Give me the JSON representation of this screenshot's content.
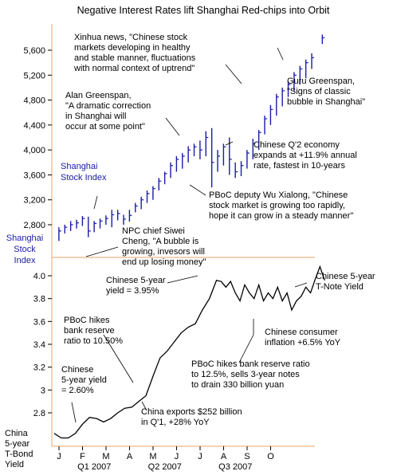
{
  "chart_data": [
    {
      "type": "candlestick",
      "title": "Negative Interest Rates lift Shanghai Red-chips into Orbit",
      "ylabel": "Shanghai Stock Index",
      "ylim": [
        2480,
        5900
      ],
      "yticks": [
        2800,
        3200,
        3600,
        4000,
        4400,
        4800,
        5200,
        5600
      ],
      "ytick_labels": [
        "2,800",
        "3,200",
        "3,600",
        "4,000",
        "4,400",
        "4,800",
        "5,200",
        "5,600"
      ],
      "series_label": "Shanghai Stock Index",
      "series": [
        {
          "name": "Shanghai Stock Index",
          "bars": [
            {
              "t": 0.2,
              "low": 2540,
              "high": 2760,
              "close": 2700
            },
            {
              "t": 0.45,
              "low": 2660,
              "high": 2800,
              "close": 2760
            },
            {
              "t": 0.7,
              "low": 2700,
              "high": 2860,
              "close": 2800
            },
            {
              "t": 0.95,
              "low": 2740,
              "high": 2880,
              "close": 2830
            },
            {
              "t": 1.2,
              "low": 2780,
              "high": 2940,
              "close": 2900
            },
            {
              "t": 1.45,
              "low": 2600,
              "high": 2930,
              "close": 2700
            },
            {
              "t": 1.7,
              "low": 2680,
              "high": 2860,
              "close": 2820
            },
            {
              "t": 1.95,
              "low": 2740,
              "high": 2900,
              "close": 2860
            },
            {
              "t": 2.2,
              "low": 2800,
              "high": 2950,
              "close": 2900
            },
            {
              "t": 2.45,
              "low": 2760,
              "high": 3040,
              "close": 2960
            },
            {
              "t": 2.7,
              "low": 2870,
              "high": 3040,
              "close": 2980
            },
            {
              "t": 2.95,
              "low": 2800,
              "high": 2960,
              "close": 2890
            },
            {
              "t": 3.2,
              "low": 2850,
              "high": 3040,
              "close": 2950
            },
            {
              "t": 3.45,
              "low": 3000,
              "high": 3150,
              "close": 3100
            },
            {
              "t": 3.7,
              "low": 3050,
              "high": 3250,
              "close": 3200
            },
            {
              "t": 3.95,
              "low": 3150,
              "high": 3350,
              "close": 3300
            },
            {
              "t": 4.2,
              "low": 3200,
              "high": 3420,
              "close": 3380
            },
            {
              "t": 4.45,
              "low": 3350,
              "high": 3550,
              "close": 3500
            },
            {
              "t": 4.7,
              "low": 3450,
              "high": 3650,
              "close": 3620
            },
            {
              "t": 4.95,
              "low": 3550,
              "high": 3800,
              "close": 3750
            },
            {
              "t": 5.2,
              "low": 3650,
              "high": 3900,
              "close": 3850
            },
            {
              "t": 5.45,
              "low": 3700,
              "high": 3950,
              "close": 3900
            },
            {
              "t": 5.7,
              "low": 3800,
              "high": 4060,
              "close": 4000
            },
            {
              "t": 5.95,
              "low": 3900,
              "high": 4100,
              "close": 4050
            },
            {
              "t": 6.2,
              "low": 3850,
              "high": 4150,
              "close": 4000
            },
            {
              "t": 6.45,
              "low": 3900,
              "high": 4300,
              "close": 4200
            },
            {
              "t": 6.7,
              "low": 3400,
              "high": 4350,
              "close": 3800
            },
            {
              "t": 6.95,
              "low": 3650,
              "high": 4000,
              "close": 3900
            },
            {
              "t": 7.2,
              "low": 3750,
              "high": 4100,
              "close": 4050
            },
            {
              "t": 7.45,
              "low": 3600,
              "high": 4200,
              "close": 3850
            },
            {
              "t": 7.7,
              "low": 3550,
              "high": 3800,
              "close": 3650
            },
            {
              "t": 7.95,
              "low": 3580,
              "high": 3820,
              "close": 3750
            },
            {
              "t": 8.2,
              "low": 3700,
              "high": 4000,
              "close": 3950
            },
            {
              "t": 8.45,
              "low": 3850,
              "high": 4180,
              "close": 4100
            },
            {
              "t": 8.7,
              "low": 4000,
              "high": 4320,
              "close": 4280
            },
            {
              "t": 8.95,
              "low": 4250,
              "high": 4550,
              "close": 4500
            },
            {
              "t": 9.2,
              "low": 4400,
              "high": 4720,
              "close": 4650
            },
            {
              "t": 9.45,
              "low": 4550,
              "high": 4900,
              "close": 4850
            },
            {
              "t": 9.7,
              "low": 4700,
              "high": 5000,
              "close": 4950
            },
            {
              "t": 9.95,
              "low": 4850,
              "high": 5100,
              "close": 5050
            },
            {
              "t": 10.2,
              "low": 4950,
              "high": 5250,
              "close": 5200
            },
            {
              "t": 10.45,
              "low": 5050,
              "high": 5350,
              "close": 5300
            },
            {
              "t": 10.7,
              "low": 5150,
              "high": 5450,
              "close": 5400
            },
            {
              "t": 10.95,
              "low": 5300,
              "high": 5550,
              "close": 5480
            },
            {
              "t": 11.4,
              "low": 5700,
              "high": 5850,
              "close": 5800
            }
          ]
        }
      ],
      "annotations": [
        {
          "text": "Xinhua news, \"Chinese stock\nmarkets developing in healthy\nand stable manner, fluctuations\nwith normal context of uptrend\""
        },
        {
          "text": "Guru Greenspan,\n\"Signs of classic\nbubble in Shanghai\""
        },
        {
          "text": "Alan Greenspan,\n\"A dramatic correction\nin Shanghai will\noccur at some point\""
        },
        {
          "text": "Chinese Q'2 economy\nexpands at +11.9% annual\nrate, fastest in 10-years"
        },
        {
          "text": "PBoC deputy Wu Xialong, \"Chinese\nstock market is growing too rapidly,\nhope it can grow in a steady manner\""
        },
        {
          "text": "NPC chief Siwei\nCheng, \"A bubble is\ngrowing, invesors will\nend up losing money\""
        }
      ],
      "grid": false
    },
    {
      "type": "line",
      "ylabel": "China 5-year T-Bond Yield",
      "ylim": [
        2.52,
        4.12
      ],
      "yticks": [
        2.8,
        3.0,
        3.2,
        3.4,
        3.6,
        3.8,
        4.0
      ],
      "ytick_labels": [
        "2.8",
        "3",
        "3.2",
        "3.4",
        "3.6",
        "3.8",
        "4.0"
      ],
      "xlabel": "",
      "x_month_labels": [
        "J",
        "F",
        "M",
        "A",
        "M",
        "J",
        "J",
        "A",
        "S",
        "O"
      ],
      "quarter_labels": [
        "Q1 2007",
        "Q2 2007",
        "Q3 2007"
      ],
      "series": [
        {
          "name": "China 5-year T-Bond Yield",
          "x": [
            0,
            0.3,
            0.6,
            0.9,
            1.2,
            1.5,
            1.8,
            2.1,
            2.4,
            2.7,
            3.0,
            3.3,
            3.6,
            3.9,
            4.2,
            4.5,
            4.8,
            5.1,
            5.4,
            5.7,
            6.0,
            6.3,
            6.6,
            6.9,
            7.1,
            7.3,
            7.5,
            7.7,
            7.9,
            8.1,
            8.3,
            8.5,
            8.7,
            8.9,
            9.1,
            9.3,
            9.5,
            9.7,
            9.9,
            10.1,
            10.3,
            10.5,
            10.7,
            10.9,
            11.1,
            11.3,
            11.5
          ],
          "y": [
            2.62,
            2.58,
            2.58,
            2.62,
            2.7,
            2.76,
            2.75,
            2.72,
            2.75,
            2.8,
            2.84,
            2.85,
            2.9,
            2.95,
            3.12,
            3.28,
            3.34,
            3.42,
            3.5,
            3.55,
            3.58,
            3.7,
            3.8,
            3.96,
            3.95,
            3.9,
            3.95,
            3.85,
            3.78,
            3.92,
            3.85,
            3.8,
            3.92,
            3.78,
            3.85,
            3.8,
            3.9,
            3.78,
            3.85,
            3.7,
            3.78,
            3.82,
            3.9,
            3.85,
            3.97,
            4.08,
            3.96
          ]
        }
      ],
      "annotations": [
        {
          "text": "Chinese 5-year\nT-Note Yield"
        },
        {
          "text": "Chinese 5-year\nyield = 3.95%"
        },
        {
          "text": "PBoC hikes\nbank reserve\nratio to 10.50%"
        },
        {
          "text": "Chinese consumer\ninflation +6.5% YoY"
        },
        {
          "text": "PBoC hikes bank reserve ratio\nto 12.5%, sells 3-year notes\nto drain 330 billion yuan"
        },
        {
          "text": "Chinese\n5-year yield\n= 2.60%"
        },
        {
          "text": "China exports $252 billion\nin Q'1, +28% YoY"
        }
      ],
      "grid": false
    }
  ],
  "colors": {
    "frame": "#e8a468",
    "candle": "#1a1aa8",
    "line": "#000000",
    "label_blue": "#1a1aa8"
  }
}
